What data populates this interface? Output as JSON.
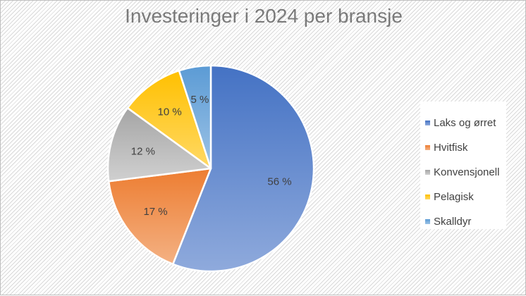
{
  "chart_data": {
    "type": "pie",
    "title": "Investeringer i 2024 per bransje",
    "legend_position": "right",
    "slices": [
      {
        "name": "Laks og ørret",
        "value": 56,
        "label": "56 %",
        "color": "#4472c4",
        "light": "#8faadc"
      },
      {
        "name": "Hvitfisk",
        "value": 17,
        "label": "17 %",
        "color": "#ed7d31",
        "light": "#f4b183"
      },
      {
        "name": "Konvensjonell",
        "value": 12,
        "label": "12 %",
        "color": "#a5a5a5",
        "light": "#d0d0d0"
      },
      {
        "name": "Pelagisk",
        "value": 10,
        "label": "10 %",
        "color": "#ffc000",
        "light": "#ffd966"
      },
      {
        "name": "Skalldyr",
        "value": 5,
        "label": "5 %",
        "color": "#5b9bd5",
        "light": "#9dc3e6"
      }
    ]
  }
}
